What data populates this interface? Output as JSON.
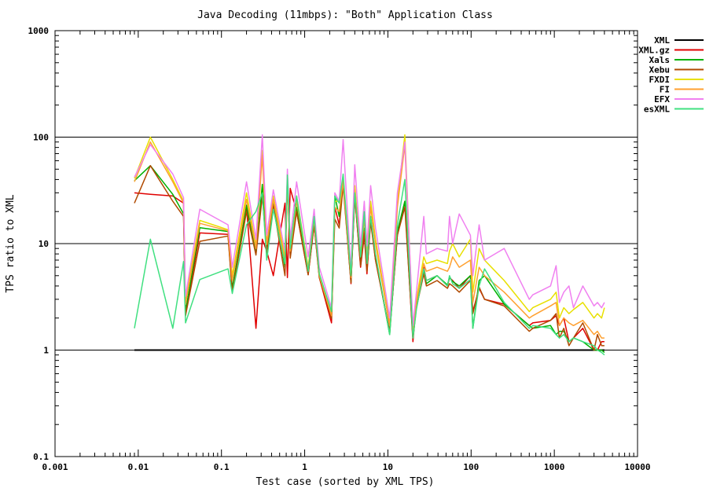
{
  "chart_data": {
    "type": "line",
    "title": "Java Decoding (11mbps): \"Both\" Application Class",
    "xlabel": "Test case (sorted by XML TPS)",
    "ylabel": "TPS ratio to XML",
    "x_scale": "log",
    "y_scale": "log",
    "xlim": [
      0.001,
      10000
    ],
    "ylim": [
      0.1,
      1000
    ],
    "x_ticks": [
      "0.001",
      "0.01",
      "0.1",
      "1",
      "10",
      "100",
      "1000",
      "10000"
    ],
    "y_ticks": [
      "0.1",
      "1",
      "10",
      "100",
      "1000"
    ],
    "grid": "horizontal major lines",
    "legend_position": "right",
    "x": [
      0.009,
      0.014,
      0.026,
      0.035,
      0.037,
      0.055,
      0.12,
      0.135,
      0.2,
      0.26,
      0.31,
      0.35,
      0.42,
      0.58,
      0.62,
      0.67,
      0.8,
      1.1,
      1.3,
      1.5,
      2.1,
      2.3,
      2.6,
      2.9,
      3.6,
      4.0,
      4.7,
      5.2,
      5.6,
      6.2,
      7.1,
      10.5,
      13.0,
      16.0,
      20.0,
      22.0,
      27.0,
      29.0,
      39.0,
      52.0,
      55.0,
      60.0,
      72.0,
      98.0,
      105.0,
      125.0,
      145.0,
      250.0,
      500.0,
      550.0,
      900.0,
      1050.0,
      1150.0,
      1300.0,
      1500.0,
      1700.0,
      2200.0,
      3000.0,
      3300.0,
      3700.0,
      4000.0
    ],
    "series": [
      {
        "name": "XML",
        "color": "#000000",
        "values": [
          1,
          1,
          1,
          1,
          1,
          1,
          1,
          1,
          1,
          1,
          1,
          1,
          1,
          1,
          1,
          1,
          1,
          1,
          1,
          1,
          1,
          1,
          1,
          1,
          1,
          1,
          1,
          1,
          1,
          1,
          1,
          1,
          1,
          1,
          1,
          1,
          1,
          1,
          1,
          1,
          1,
          1,
          1,
          1,
          1,
          1,
          1,
          1,
          1,
          1,
          1,
          1,
          1,
          1,
          1,
          1,
          1,
          1,
          1,
          1,
          1
        ]
      },
      {
        "name": "XML.gz",
        "color": "#e00000",
        "values": [
          30,
          29,
          28,
          24,
          2.2,
          12.6,
          12.2,
          3.6,
          22,
          1.6,
          11,
          8.5,
          5.0,
          24,
          4.8,
          33,
          20,
          5.1,
          15,
          4.8,
          1.8,
          22,
          15,
          38,
          4.2,
          28,
          6.0,
          12,
          5.2,
          17,
          7.0,
          1.5,
          12,
          25,
          1.2,
          2.8,
          6.0,
          4.5,
          5.0,
          4.0,
          4.8,
          4.5,
          3.8,
          5.0,
          2.3,
          3.8,
          3.0,
          2.7,
          1.7,
          1.8,
          1.9,
          2.1,
          1.7,
          2.0,
          1.2,
          1.3,
          1.6,
          1.0,
          1.0,
          1.2,
          1.2
        ]
      },
      {
        "name": "Xals",
        "color": "#00b000",
        "values": [
          39,
          54,
          29,
          19,
          2.3,
          14.1,
          13,
          3.8,
          23,
          8.0,
          36,
          9.0,
          25,
          6.0,
          45,
          8.0,
          22,
          5.3,
          16,
          5.0,
          2.0,
          28,
          18,
          40,
          4.4,
          32,
          6.5,
          14,
          6.0,
          18,
          7.5,
          1.4,
          13,
          25,
          1.3,
          2.6,
          5.5,
          4.2,
          5.0,
          4.1,
          4.8,
          4.4,
          4.0,
          5.0,
          1.6,
          4.5,
          5.0,
          2.7,
          1.7,
          1.6,
          1.7,
          1.4,
          1.5,
          1.5,
          1.2,
          1.3,
          1.2,
          1.0,
          1.0,
          1.0,
          0.95
        ]
      },
      {
        "name": "Xebu",
        "color": "#b04a00",
        "values": [
          24,
          54,
          25,
          18,
          2.1,
          10.5,
          11.8,
          3.5,
          20,
          7.8,
          28,
          8.4,
          23,
          5.0,
          38,
          7.3,
          20,
          5.1,
          15,
          4.8,
          2.0,
          17,
          14,
          35,
          4.3,
          28,
          6.2,
          13,
          5.5,
          16,
          7.0,
          1.5,
          12,
          22,
          1.3,
          2.5,
          5.2,
          4.0,
          4.5,
          3.8,
          4.2,
          4.0,
          3.5,
          4.5,
          2.2,
          3.9,
          3.0,
          2.6,
          1.5,
          1.6,
          1.9,
          2.2,
          1.3,
          1.6,
          1.1,
          1.3,
          1.8,
          1.0,
          1.4,
          1.1,
          1.1
        ]
      },
      {
        "name": "FXDI",
        "color": "#e8e000",
        "values": [
          41,
          100,
          40,
          25,
          3.0,
          16.5,
          13.5,
          5.0,
          30,
          9.5,
          75,
          10,
          28,
          7.5,
          41,
          9.2,
          28,
          6.0,
          18,
          5.2,
          2.2,
          25,
          25,
          42,
          5.0,
          35,
          8.0,
          19,
          8.2,
          25,
          11,
          1.8,
          25,
          105,
          1.5,
          3.0,
          7.5,
          6.5,
          7.0,
          6.5,
          8.5,
          10,
          7.5,
          11,
          3.5,
          9.0,
          7.0,
          4.5,
          2.3,
          2.5,
          3.0,
          3.5,
          2.0,
          2.5,
          2.2,
          2.4,
          2.8,
          2.0,
          2.2,
          2.0,
          2.5
        ]
      },
      {
        "name": "FI",
        "color": "#ffa030",
        "values": [
          38,
          90,
          38,
          24,
          2.7,
          15.5,
          13.2,
          4.5,
          26,
          9.0,
          68,
          9.8,
          26,
          6.8,
          38,
          8.5,
          25,
          5.8,
          17,
          5.0,
          2.1,
          22,
          20,
          38,
          4.8,
          32,
          7.5,
          17,
          7.5,
          22,
          10,
          1.7,
          22,
          85,
          1.4,
          2.8,
          6.5,
          5.5,
          6.0,
          5.5,
          6.0,
          7.5,
          6.0,
          7.0,
          2.8,
          6.0,
          5.0,
          3.5,
          2.0,
          2.1,
          2.6,
          2.8,
          1.7,
          2.0,
          1.8,
          1.7,
          1.9,
          1.4,
          1.5,
          1.3,
          1.3
        ]
      },
      {
        "name": "EFX",
        "color": "#f080f0",
        "values": [
          42,
          85,
          45,
          27,
          3.2,
          21,
          15,
          6.0,
          38,
          11,
          105,
          12,
          32,
          8.5,
          50,
          11,
          38,
          7.5,
          21,
          6.0,
          2.5,
          30,
          25,
          95,
          5.5,
          55,
          9.5,
          25,
          9.5,
          35,
          14,
          2.0,
          30,
          90,
          1.7,
          3.5,
          18,
          8.0,
          9.0,
          8.5,
          18,
          10,
          19,
          12,
          5.0,
          15,
          7.0,
          9.0,
          3.0,
          3.3,
          4.0,
          6.2,
          2.8,
          3.5,
          4.0,
          2.5,
          4.0,
          2.6,
          2.8,
          2.5,
          2.8
        ]
      },
      {
        "name": "esXML",
        "color": "#40e080",
        "values": [
          1.6,
          11,
          1.6,
          6.8,
          1.8,
          4.6,
          5.8,
          3.4,
          15,
          20,
          30,
          7.0,
          21,
          6.5,
          44,
          9.0,
          28,
          5.5,
          18,
          5.2,
          2.3,
          28,
          24,
          45,
          5.0,
          30,
          7.5,
          20,
          6.5,
          18,
          8.0,
          1.4,
          15,
          40,
          1.3,
          2.4,
          5.8,
          4.5,
          5.0,
          4.0,
          5.0,
          4.2,
          3.8,
          4.6,
          1.6,
          4.0,
          5.8,
          2.8,
          1.6,
          1.7,
          1.6,
          1.4,
          1.3,
          1.4,
          1.2,
          1.3,
          1.2,
          1.1,
          1.0,
          0.95,
          0.9
        ]
      }
    ]
  }
}
